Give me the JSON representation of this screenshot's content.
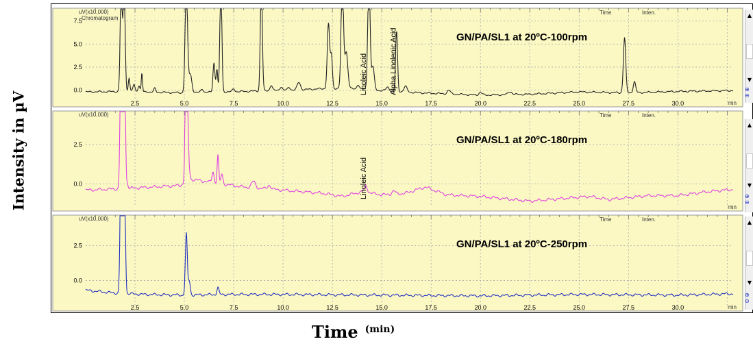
{
  "y_axis_label": "Intensity in µV",
  "x_axis_label": "Time",
  "x_axis_unit": "(min)",
  "colors": {
    "panel_bg": "#fbf8c4",
    "trace1": "#222222",
    "trace2": "#e040e0",
    "trace3": "#2030c0",
    "grid": "#a8a8a8"
  },
  "chart_data": [
    {
      "type": "line",
      "scale_label": "uV(x10,000)",
      "chromatogram_label": "Chromatogram",
      "title": "GN/PA/SL1 at 20ºC-100rpm",
      "legend_time": "Time",
      "legend_inten": "Inten.",
      "x_unit": "min",
      "xlim": [
        0,
        32.8
      ],
      "ylim": [
        -1.6,
        8.3
      ],
      "y_ticks": [
        "7.5",
        "5.0",
        "2.5",
        "0.0"
      ],
      "x_ticks": [
        "2.5",
        "5.0",
        "7.5",
        "10.0",
        "12.5",
        "15.0",
        "17.5",
        "20.0",
        "22.5",
        "25.0",
        "27.5",
        "30.0"
      ],
      "annotations": [
        {
          "text": "Linoleic Acid",
          "x": 14.2
        },
        {
          "text": "Alpha Linolenic Acid",
          "x": 15.7
        }
      ],
      "series": [
        {
          "baseline": [
            [
              0,
              -0.2
            ],
            [
              2,
              -0.15
            ],
            [
              5,
              -0.3
            ],
            [
              8,
              -0.15
            ],
            [
              11,
              0.05
            ],
            [
              12.5,
              0.2
            ],
            [
              14,
              0.1
            ],
            [
              15,
              -0.05
            ],
            [
              17,
              -0.3
            ],
            [
              20,
              -0.55
            ],
            [
              22.5,
              -0.45
            ],
            [
              25,
              -0.2
            ],
            [
              27.5,
              -0.3
            ],
            [
              30,
              -0.15
            ],
            [
              32.8,
              -0.05
            ]
          ],
          "peaks": [
            [
              1.8,
              12,
              0.05
            ],
            [
              1.95,
              12,
              0.05
            ],
            [
              2.2,
              1.5,
              0.04
            ],
            [
              2.45,
              0.8,
              0.05
            ],
            [
              2.7,
              0.7,
              0.05
            ],
            [
              2.85,
              2.0,
              0.03
            ],
            [
              3.5,
              0.4,
              0.05
            ],
            [
              5.1,
              12,
              0.06
            ],
            [
              5.3,
              2.0,
              0.08
            ],
            [
              5.9,
              0.4,
              0.06
            ],
            [
              6.5,
              3.2,
              0.05
            ],
            [
              6.65,
              2.5,
              0.04
            ],
            [
              6.85,
              12,
              0.05
            ],
            [
              7.5,
              0.3,
              0.06
            ],
            [
              8.9,
              12,
              0.05
            ],
            [
              9.4,
              0.6,
              0.06
            ],
            [
              9.9,
              0.4,
              0.06
            ],
            [
              10.3,
              0.3,
              0.06
            ],
            [
              10.8,
              0.8,
              0.08
            ],
            [
              12.3,
              7.0,
              0.06
            ],
            [
              12.45,
              3.5,
              0.05
            ],
            [
              13.0,
              12,
              0.06
            ],
            [
              13.2,
              4.0,
              0.08
            ],
            [
              13.8,
              0.5,
              0.06
            ],
            [
              14.35,
              12,
              0.06
            ],
            [
              14.55,
              2.5,
              0.07
            ],
            [
              15.3,
              0.4,
              0.08
            ],
            [
              15.75,
              6.5,
              0.05
            ],
            [
              16.2,
              0.6,
              0.08
            ],
            [
              18.4,
              0.4,
              0.08
            ],
            [
              20.0,
              0.3,
              0.08
            ],
            [
              21.5,
              0.3,
              0.1
            ],
            [
              27.3,
              6.0,
              0.06
            ],
            [
              27.8,
              1.2,
              0.06
            ]
          ]
        }
      ]
    },
    {
      "type": "line",
      "scale_label": "uV(x10,000)",
      "title": "GN/PA/SL1 at 20ºC-180rpm",
      "legend_time": "Time",
      "legend_inten": "Inten.",
      "x_unit": "min",
      "xlim": [
        0,
        32.8
      ],
      "ylim": [
        -1.6,
        4.3
      ],
      "y_ticks": [
        "2.5",
        "0.0"
      ],
      "annotations": [
        {
          "text": "Linoleic Acid",
          "x": 14.2
        }
      ],
      "series": [
        {
          "baseline": [
            [
              0,
              -0.4
            ],
            [
              2,
              -0.3
            ],
            [
              4.8,
              -0.1
            ],
            [
              5.3,
              0.3
            ],
            [
              8,
              -0.2
            ],
            [
              9,
              -0.3
            ],
            [
              11,
              -0.5
            ],
            [
              12,
              -0.6
            ],
            [
              13,
              -0.8
            ],
            [
              14,
              -0.5
            ],
            [
              15,
              -0.7
            ],
            [
              16.2,
              -0.6
            ],
            [
              17.2,
              -0.2
            ],
            [
              18.3,
              -0.7
            ],
            [
              20,
              -0.8
            ],
            [
              22.5,
              -1.1
            ],
            [
              24,
              -0.95
            ],
            [
              25.5,
              -0.8
            ],
            [
              26.5,
              -1.0
            ],
            [
              28.5,
              -0.75
            ],
            [
              30,
              -0.75
            ],
            [
              31.5,
              -0.5
            ],
            [
              32.8,
              -0.35
            ]
          ],
          "peaks": [
            [
              1.8,
              12,
              0.05
            ],
            [
              1.95,
              12,
              0.05
            ],
            [
              2.1,
              0.3,
              0.05
            ],
            [
              5.1,
              12,
              0.05
            ],
            [
              5.2,
              1.5,
              0.05
            ],
            [
              6.45,
              0.7,
              0.05
            ],
            [
              6.7,
              1.8,
              0.04
            ],
            [
              6.9,
              0.6,
              0.05
            ],
            [
              8.5,
              0.4,
              0.1
            ],
            [
              9.3,
              0.25,
              0.08
            ],
            [
              14.2,
              0.45,
              0.07
            ],
            [
              15.6,
              0.2,
              0.08
            ]
          ]
        }
      ]
    },
    {
      "type": "line",
      "scale_label": "uV(x10,000)",
      "title": "GN/PA/SL1 at 20ºC-250rpm",
      "legend_time": "Time",
      "legend_inten": "Inten.",
      "x_unit": "min",
      "xlim": [
        0,
        32.8
      ],
      "ylim": [
        -1.6,
        4.3
      ],
      "y_ticks": [
        "2.5",
        "0.0"
      ],
      "x_ticks": [
        "2.5",
        "5.0",
        "7.5",
        "10.0",
        "12.5",
        "15.0",
        "17.5",
        "20.0",
        "22.5",
        "25.0",
        "27.5",
        "30.0"
      ],
      "series": [
        {
          "baseline": [
            [
              0,
              -0.7
            ],
            [
              1.5,
              -0.9
            ],
            [
              3,
              -1.0
            ],
            [
              5,
              -1.05
            ],
            [
              7,
              -1.0
            ],
            [
              10,
              -1.0
            ],
            [
              15,
              -1.05
            ],
            [
              20,
              -1.1
            ],
            [
              25,
              -1.0
            ],
            [
              30,
              -1.05
            ],
            [
              32.8,
              -0.95
            ]
          ],
          "peaks": [
            [
              1.8,
              12,
              0.05
            ],
            [
              1.95,
              12,
              0.05
            ],
            [
              5.1,
              4.4,
              0.05
            ],
            [
              5.25,
              1.0,
              0.05
            ],
            [
              6.7,
              0.5,
              0.05
            ]
          ]
        }
      ]
    }
  ]
}
